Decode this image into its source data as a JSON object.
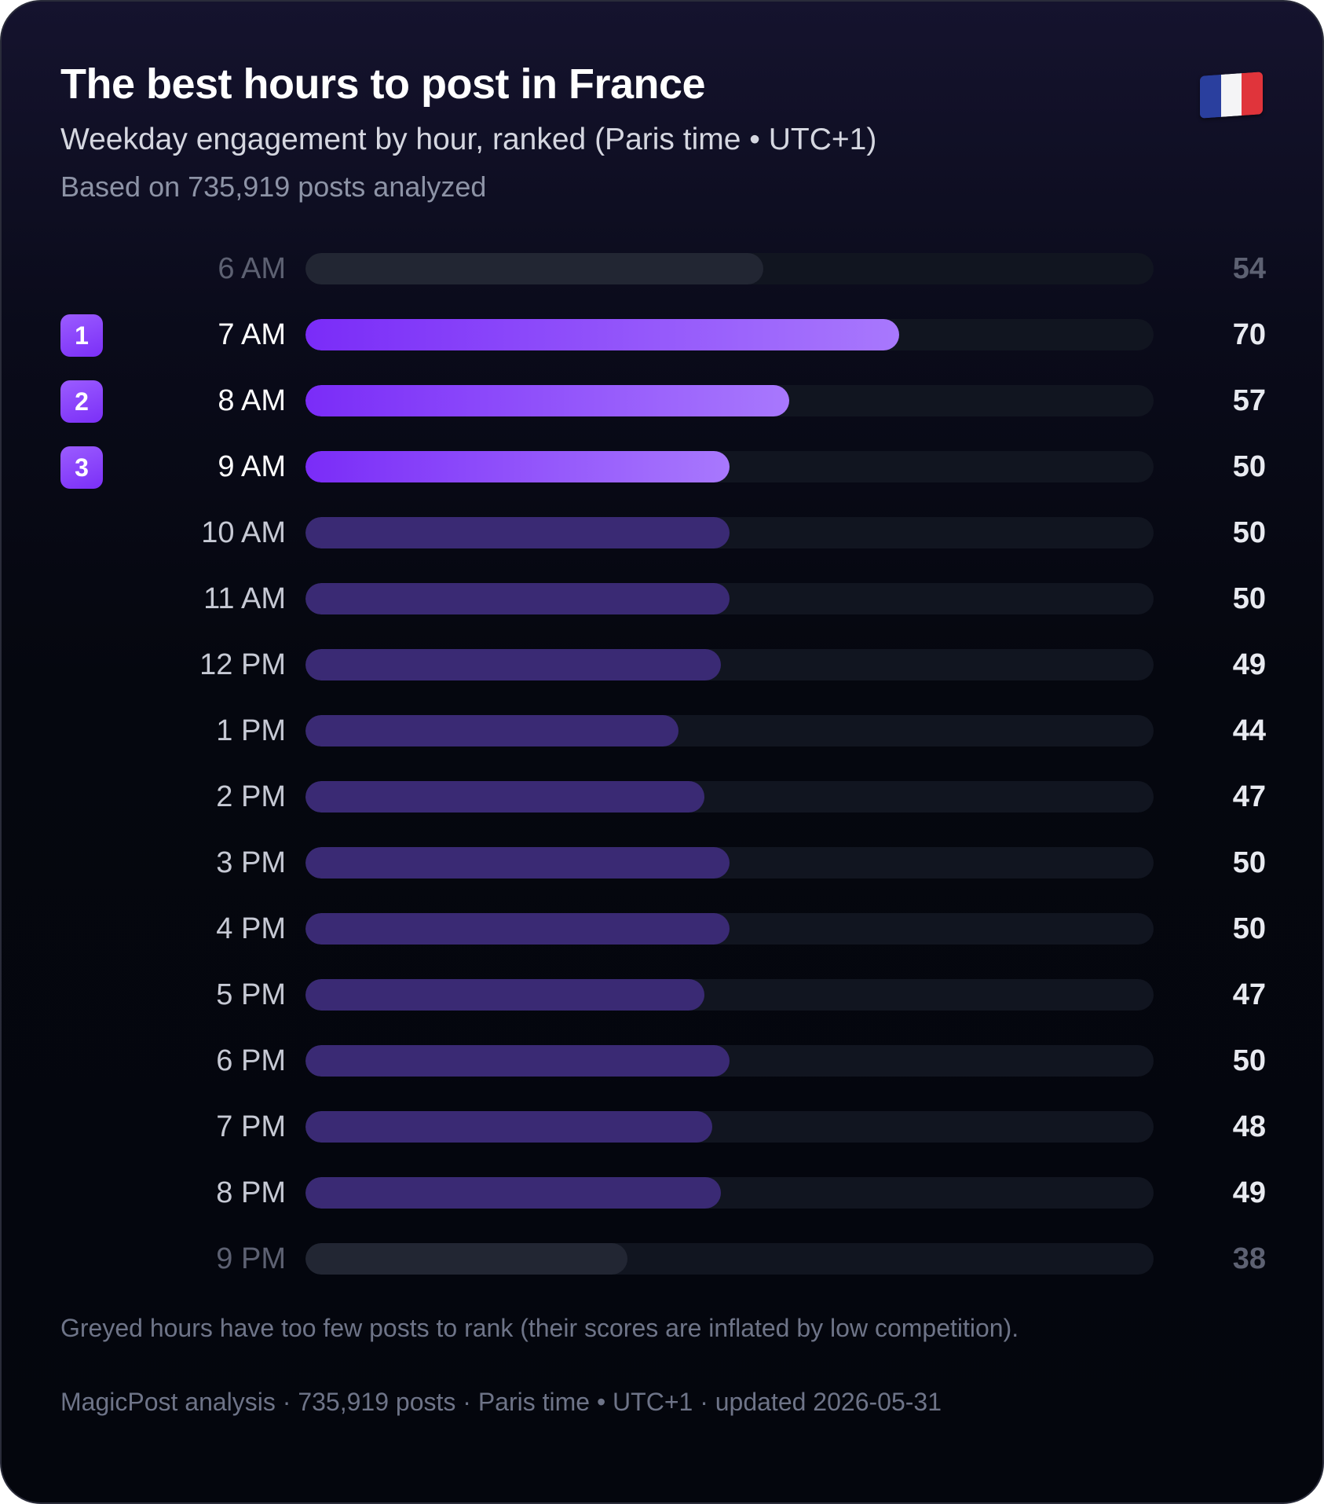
{
  "header": {
    "title": "The best hours to post in France",
    "subtitle": "Weekday engagement by hour, ranked (Paris time • UTC+1)",
    "basis": "Based on 735,919 posts analyzed",
    "flag_icon": "france-flag-icon"
  },
  "colors": {
    "top_gradient_start": "#7a2cf8",
    "top_gradient_end": "#a878fd",
    "normal_bar": "#3a2a74",
    "greyed_bar": "#222633",
    "track": "#111520"
  },
  "chart_data": {
    "type": "bar",
    "orientation": "horizontal",
    "categories": [
      "6 AM",
      "7 AM",
      "8 AM",
      "9 AM",
      "10 AM",
      "11 AM",
      "12 PM",
      "1 PM",
      "2 PM",
      "3 PM",
      "4 PM",
      "5 PM",
      "6 PM",
      "7 PM",
      "8 PM",
      "9 PM"
    ],
    "values": [
      54,
      70,
      57,
      50,
      50,
      50,
      49,
      44,
      47,
      50,
      50,
      47,
      50,
      48,
      49,
      38
    ],
    "ranks": [
      null,
      1,
      2,
      3,
      null,
      null,
      null,
      null,
      null,
      null,
      null,
      null,
      null,
      null,
      null,
      null
    ],
    "greyed": [
      true,
      false,
      false,
      false,
      false,
      false,
      false,
      false,
      false,
      false,
      false,
      false,
      false,
      false,
      false,
      true
    ],
    "xlim": [
      0,
      100
    ],
    "title": "The best hours to post in France",
    "subtitle": "Weekday engagement by hour, ranked (Paris time • UTC+1)",
    "grid": false,
    "legend": "none"
  },
  "note": "Greyed hours have too few posts to rank (their scores are inflated by low competition).",
  "footer": "MagicPost analysis · 735,919 posts · Paris time • UTC+1 · updated 2026-05-31"
}
